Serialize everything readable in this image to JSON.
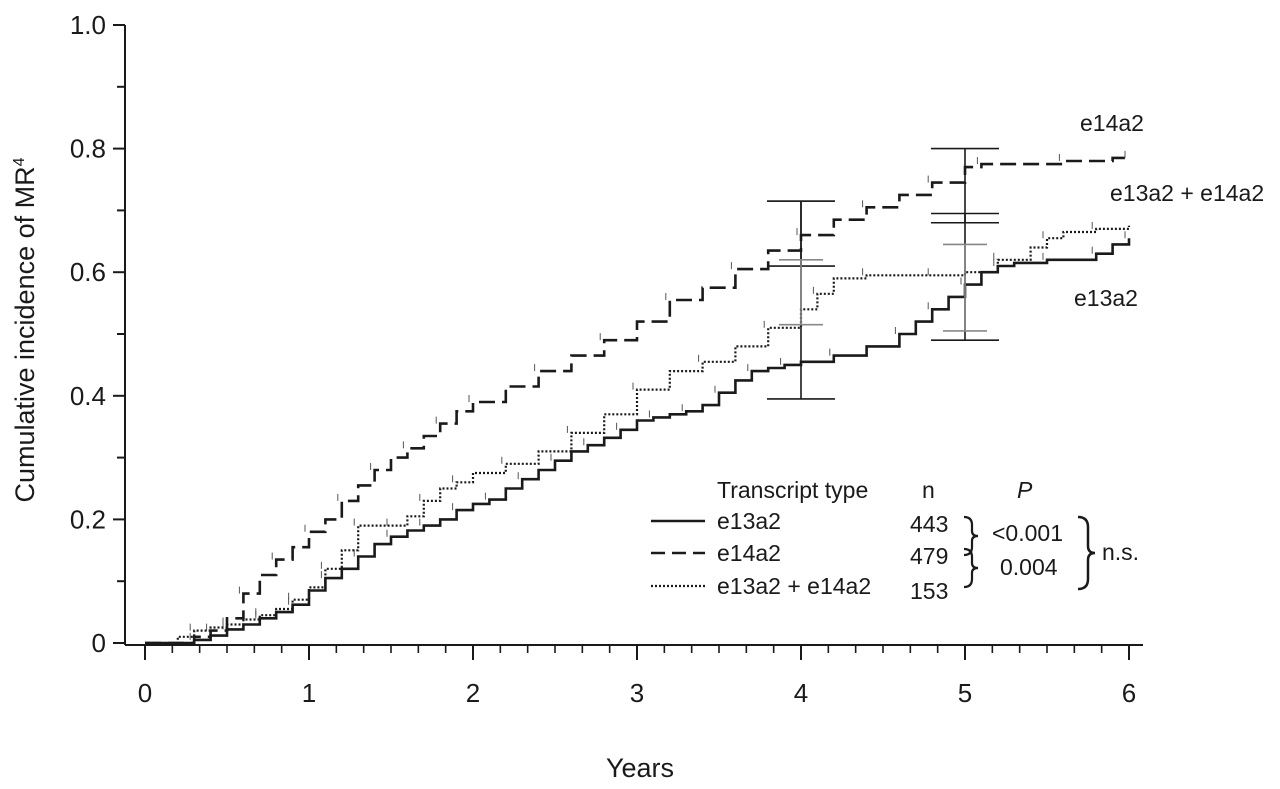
{
  "chart_data": {
    "type": "line",
    "xlabel": "Years",
    "ylabel": "Cumulative incidence of MR",
    "ylabel_superscript": "4",
    "xlim": [
      0,
      6
    ],
    "ylim": [
      0,
      1.0
    ],
    "x_ticks": [
      "0",
      "1",
      "2",
      "3",
      "4",
      "5",
      "6"
    ],
    "y_ticks": [
      "0",
      "0.2",
      "0.4",
      "0.6",
      "0.8",
      "1.0"
    ],
    "x_tick_values": [
      0,
      1,
      2,
      3,
      4,
      5,
      6
    ],
    "y_tick_values": [
      0,
      0.2,
      0.4,
      0.6,
      0.8,
      1.0
    ],
    "grid": false,
    "series": [
      {
        "name": "e13a2",
        "style": "solid",
        "end_label": "e13a2",
        "n": "443",
        "points": [
          [
            0,
            0
          ],
          [
            0.2,
            0
          ],
          [
            0.3,
            0.005
          ],
          [
            0.4,
            0.012
          ],
          [
            0.5,
            0.022
          ],
          [
            0.6,
            0.03
          ],
          [
            0.7,
            0.04
          ],
          [
            0.8,
            0.05
          ],
          [
            0.9,
            0.062
          ],
          [
            1.0,
            0.085
          ],
          [
            1.1,
            0.105
          ],
          [
            1.2,
            0.12
          ],
          [
            1.3,
            0.14
          ],
          [
            1.4,
            0.16
          ],
          [
            1.5,
            0.172
          ],
          [
            1.6,
            0.182
          ],
          [
            1.7,
            0.19
          ],
          [
            1.8,
            0.2
          ],
          [
            1.9,
            0.215
          ],
          [
            2.0,
            0.225
          ],
          [
            2.1,
            0.232
          ],
          [
            2.2,
            0.25
          ],
          [
            2.3,
            0.265
          ],
          [
            2.4,
            0.28
          ],
          [
            2.5,
            0.295
          ],
          [
            2.6,
            0.31
          ],
          [
            2.7,
            0.32
          ],
          [
            2.8,
            0.332
          ],
          [
            2.9,
            0.345
          ],
          [
            3.0,
            0.36
          ],
          [
            3.1,
            0.365
          ],
          [
            3.2,
            0.37
          ],
          [
            3.3,
            0.375
          ],
          [
            3.4,
            0.385
          ],
          [
            3.5,
            0.405
          ],
          [
            3.6,
            0.425
          ],
          [
            3.7,
            0.44
          ],
          [
            3.8,
            0.445
          ],
          [
            3.9,
            0.45
          ],
          [
            4.0,
            0.455
          ],
          [
            4.2,
            0.465
          ],
          [
            4.4,
            0.48
          ],
          [
            4.6,
            0.5
          ],
          [
            4.7,
            0.52
          ],
          [
            4.8,
            0.54
          ],
          [
            4.9,
            0.56
          ],
          [
            5.0,
            0.58
          ],
          [
            5.1,
            0.6
          ],
          [
            5.2,
            0.61
          ],
          [
            5.3,
            0.615
          ],
          [
            5.5,
            0.62
          ],
          [
            5.7,
            0.62
          ],
          [
            5.8,
            0.63
          ],
          [
            5.9,
            0.645
          ],
          [
            6.0,
            0.655
          ]
        ],
        "error_bars": [
          {
            "x": 4,
            "low": 0.395,
            "high": 0.715
          },
          {
            "x": 5,
            "low": 0.49,
            "high": 0.695
          }
        ]
      },
      {
        "name": "e14a2",
        "style": "dashed",
        "end_label": "e14a2",
        "n": "479",
        "points": [
          [
            0,
            0
          ],
          [
            0.3,
            0.01
          ],
          [
            0.4,
            0.02
          ],
          [
            0.5,
            0.04
          ],
          [
            0.6,
            0.08
          ],
          [
            0.7,
            0.11
          ],
          [
            0.8,
            0.135
          ],
          [
            0.9,
            0.155
          ],
          [
            1.0,
            0.18
          ],
          [
            1.1,
            0.2
          ],
          [
            1.2,
            0.23
          ],
          [
            1.3,
            0.255
          ],
          [
            1.4,
            0.28
          ],
          [
            1.5,
            0.3
          ],
          [
            1.6,
            0.315
          ],
          [
            1.7,
            0.335
          ],
          [
            1.8,
            0.355
          ],
          [
            1.9,
            0.375
          ],
          [
            2.0,
            0.39
          ],
          [
            2.2,
            0.415
          ],
          [
            2.4,
            0.44
          ],
          [
            2.6,
            0.465
          ],
          [
            2.8,
            0.49
          ],
          [
            3.0,
            0.52
          ],
          [
            3.2,
            0.555
          ],
          [
            3.4,
            0.575
          ],
          [
            3.6,
            0.605
          ],
          [
            3.8,
            0.635
          ],
          [
            4.0,
            0.66
          ],
          [
            4.2,
            0.685
          ],
          [
            4.4,
            0.705
          ],
          [
            4.6,
            0.725
          ],
          [
            4.8,
            0.745
          ],
          [
            5.0,
            0.77
          ],
          [
            5.1,
            0.775
          ],
          [
            5.3,
            0.775
          ],
          [
            5.6,
            0.78
          ],
          [
            5.9,
            0.785
          ],
          [
            6.0,
            0.785
          ]
        ],
        "error_bars": [
          {
            "x": 4,
            "low": 0.61,
            "high": 0.715
          },
          {
            "x": 5,
            "low": 0.68,
            "high": 0.8
          }
        ]
      },
      {
        "name": "e13a2 + e14a2",
        "style": "dotted",
        "end_label": "e13a2 + e14a2",
        "n": "153",
        "points": [
          [
            0,
            0
          ],
          [
            0.2,
            0.01
          ],
          [
            0.3,
            0.02
          ],
          [
            0.4,
            0.025
          ],
          [
            0.5,
            0.03
          ],
          [
            0.6,
            0.038
          ],
          [
            0.7,
            0.045
          ],
          [
            0.8,
            0.055
          ],
          [
            0.9,
            0.07
          ],
          [
            1.0,
            0.09
          ],
          [
            1.1,
            0.12
          ],
          [
            1.2,
            0.15
          ],
          [
            1.3,
            0.19
          ],
          [
            1.4,
            0.19
          ],
          [
            1.5,
            0.19
          ],
          [
            1.6,
            0.205
          ],
          [
            1.7,
            0.23
          ],
          [
            1.8,
            0.25
          ],
          [
            1.9,
            0.26
          ],
          [
            2.0,
            0.275
          ],
          [
            2.2,
            0.29
          ],
          [
            2.4,
            0.31
          ],
          [
            2.6,
            0.34
          ],
          [
            2.8,
            0.37
          ],
          [
            3.0,
            0.41
          ],
          [
            3.2,
            0.44
          ],
          [
            3.4,
            0.455
          ],
          [
            3.6,
            0.48
          ],
          [
            3.8,
            0.51
          ],
          [
            4.0,
            0.54
          ],
          [
            4.1,
            0.565
          ],
          [
            4.2,
            0.59
          ],
          [
            4.4,
            0.595
          ],
          [
            4.6,
            0.595
          ],
          [
            4.8,
            0.595
          ],
          [
            5.0,
            0.6
          ],
          [
            5.2,
            0.62
          ],
          [
            5.4,
            0.64
          ],
          [
            5.5,
            0.655
          ],
          [
            5.6,
            0.665
          ],
          [
            5.8,
            0.67
          ],
          [
            6.0,
            0.675
          ]
        ],
        "error_bars": [
          {
            "x": 4,
            "low": 0.515,
            "high": 0.62
          },
          {
            "x": 5,
            "low": 0.505,
            "high": 0.645
          }
        ]
      }
    ],
    "legend": {
      "title": "Transcript type",
      "n_header": "n",
      "p_header": "P",
      "p_values": [
        "<0.001",
        "0.004"
      ],
      "overall_comparison": "n.s.",
      "placement": "bottom-right"
    }
  }
}
